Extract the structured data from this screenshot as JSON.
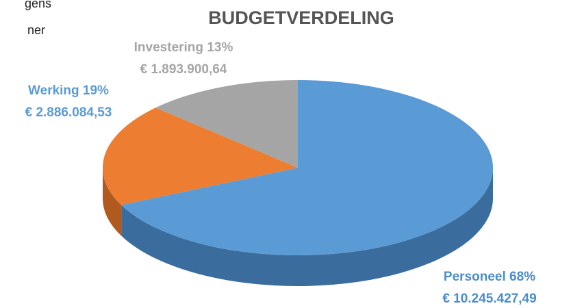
{
  "fragments": [
    "gens",
    "ner"
  ],
  "chart_data": {
    "type": "pie",
    "title": "BUDGETVERDELING",
    "categories": [
      "Personeel",
      "Werking",
      "Investering"
    ],
    "values": [
      68,
      19,
      13
    ],
    "value_labels": [
      "68%",
      "19%",
      "13%"
    ],
    "amounts": [
      "€ 10.245.427,49",
      "€ 2.886.084,53",
      "€ 1.893.900,64"
    ],
    "colors": [
      "#5b9bd5",
      "#ed7d31",
      "#a5a5a5"
    ],
    "side_colors": [
      "#3a6d9e",
      "#b05a1f",
      "#7a7a7a"
    ]
  }
}
